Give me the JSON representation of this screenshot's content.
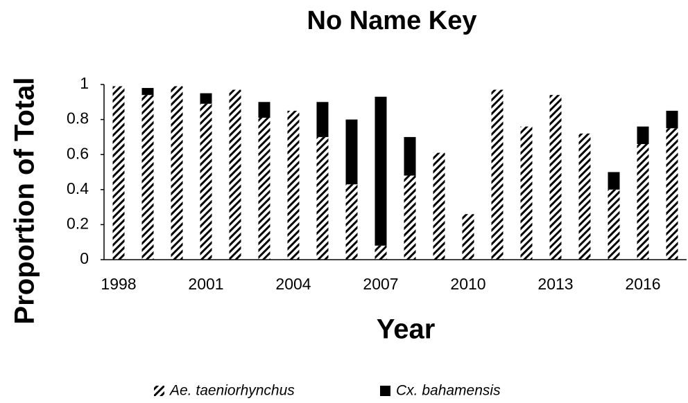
{
  "chart_data": {
    "type": "stacked_bar",
    "title": "No Name Key",
    "xlabel": "Year",
    "ylabel": "Proportion of Total",
    "categories": [
      "1998",
      null,
      null,
      "2001",
      null,
      null,
      "2004",
      null,
      null,
      "2007",
      null,
      null,
      "2010",
      null,
      null,
      "2013",
      null,
      null,
      "2016",
      null
    ],
    "series": [
      {
        "name": "Ae. taeniorhynchus",
        "color": "#000000",
        "pattern": "hatch",
        "values": [
          0.99,
          0.94,
          0.99,
          0.89,
          0.97,
          0.81,
          0.85,
          0.7,
          0.43,
          0.08,
          0.48,
          0.61,
          0.26,
          0.97,
          0.76,
          0.94,
          0.72,
          0.4,
          0.66,
          0.75
        ]
      },
      {
        "name": "Cx. bahamensis",
        "color": "#000000",
        "pattern": "solid",
        "values": [
          0,
          0.04,
          0,
          0.06,
          0,
          0.09,
          0,
          0.2,
          0.37,
          0.85,
          0.22,
          0,
          0,
          0,
          0,
          0,
          0,
          0.1,
          0.1,
          0.1
        ]
      }
    ],
    "ylim": [
      0,
      1
    ],
    "yticks": [
      0,
      0.2,
      0.4,
      0.6,
      0.8,
      1
    ],
    "legend": "bottom",
    "grid": false
  }
}
